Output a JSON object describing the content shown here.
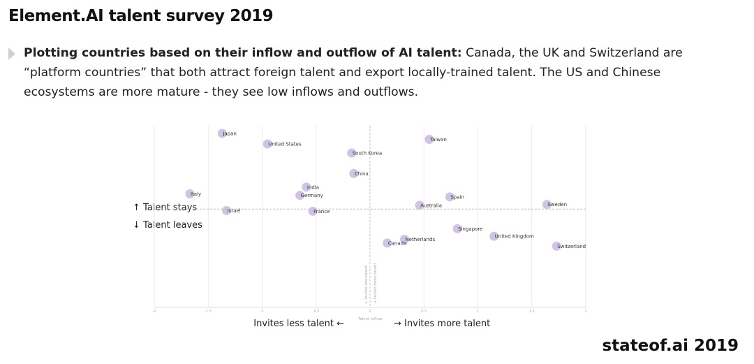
{
  "header": {
    "title": "Element.AI talent survey 2019"
  },
  "description": {
    "bold": "Plotting countries based on their inflow and outflow of AI talent:",
    "text": " Canada, the UK and Switzerland are “platform countries” that both attract foreign talent and export locally-trained talent. The US and Chinese ecosystems are more mature - they see low inflows and outflows."
  },
  "footer": {
    "brand": "stateof.ai 2019"
  },
  "colors": {
    "dot": "#c9b8de",
    "grid": "#e6e6e6",
    "reference": "#b5b5b5"
  },
  "chart_data": {
    "type": "scatter",
    "title": "",
    "xlabel": "Talent inflow",
    "ylabel": "",
    "x_left_label": "Invites less talent ←",
    "x_right_label": "→ Invites more talent",
    "y_up_label": "↑ Talent stays",
    "y_down_label": "↓ Talent leaves",
    "vertical_labels": [
      "← Invites less talent",
      "→ Invites more talent"
    ],
    "xlim": [
      -2,
      2
    ],
    "ylim": [
      -1.3,
      1.1
    ],
    "xticks": [
      {
        "value": -2,
        "label": "-2"
      },
      {
        "value": -1.5,
        "label": "-1.5"
      },
      {
        "value": -1,
        "label": "-1"
      },
      {
        "value": -0.5,
        "label": "-0.5"
      },
      {
        "value": 0,
        "label": "0"
      },
      {
        "value": 0.5,
        "label": "0.5"
      },
      {
        "value": 1,
        "label": "1"
      },
      {
        "value": 1.5,
        "label": "1.5"
      },
      {
        "value": 2,
        "label": "2"
      }
    ],
    "grid": true,
    "points": [
      {
        "label": "Japan",
        "x": -1.37,
        "y": 1.0
      },
      {
        "label": "United States",
        "x": -0.95,
        "y": 0.86
      },
      {
        "label": "Taiwan",
        "x": 0.55,
        "y": 0.92
      },
      {
        "label": "South Korea",
        "x": -0.17,
        "y": 0.74
      },
      {
        "label": "China",
        "x": -0.15,
        "y": 0.47
      },
      {
        "label": "India",
        "x": -0.59,
        "y": 0.29
      },
      {
        "label": "Italy",
        "x": -1.67,
        "y": 0.2
      },
      {
        "label": "Germany",
        "x": -0.65,
        "y": 0.18
      },
      {
        "label": "Spain",
        "x": 0.74,
        "y": 0.16
      },
      {
        "label": "Sweden",
        "x": 1.64,
        "y": 0.06
      },
      {
        "label": "Australia",
        "x": 0.46,
        "y": 0.05
      },
      {
        "label": "Israel",
        "x": -1.33,
        "y": -0.02
      },
      {
        "label": "France",
        "x": -0.53,
        "y": -0.03
      },
      {
        "label": "Singapore",
        "x": 0.81,
        "y": -0.26
      },
      {
        "label": "United Kingdom",
        "x": 1.15,
        "y": -0.36
      },
      {
        "label": "Netherlands",
        "x": 0.32,
        "y": -0.4
      },
      {
        "label": "Canada",
        "x": 0.16,
        "y": -0.45
      },
      {
        "label": "Switzerland",
        "x": 1.73,
        "y": -0.49
      }
    ]
  }
}
